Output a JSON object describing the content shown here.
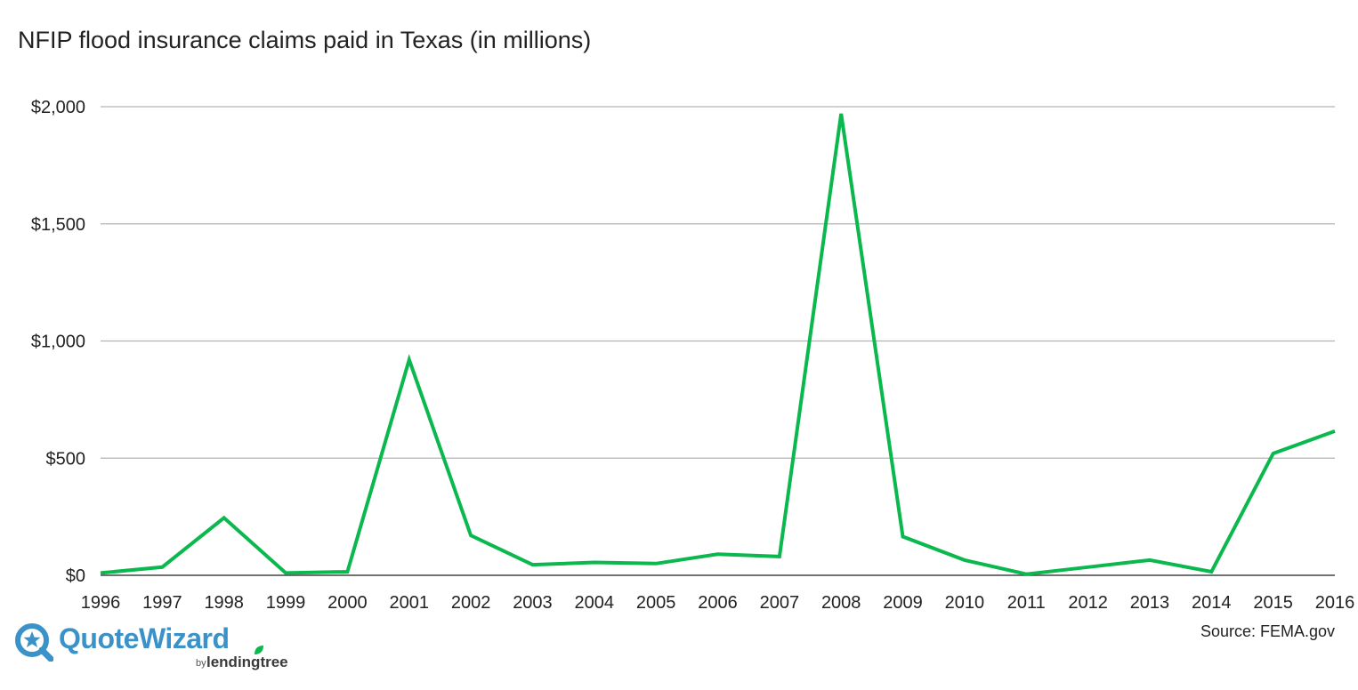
{
  "chart_data": {
    "type": "line",
    "title": "NFIP flood insurance claims paid in Texas (in millions)",
    "xlabel": "",
    "ylabel": "",
    "x": [
      "1996",
      "1997",
      "1998",
      "1999",
      "2000",
      "2001",
      "2002",
      "2003",
      "2004",
      "2005",
      "2006",
      "2007",
      "2008",
      "2009",
      "2010",
      "2011",
      "2012",
      "2013",
      "2014",
      "2015",
      "2016"
    ],
    "series": [
      {
        "values": [
          10,
          35,
          245,
          10,
          15,
          920,
          170,
          45,
          55,
          50,
          90,
          80,
          1970,
          165,
          65,
          5,
          35,
          65,
          15,
          520,
          615
        ]
      }
    ],
    "ylim": [
      0,
      2000
    ],
    "yticks": [
      0,
      500,
      1000,
      1500,
      2000
    ],
    "ytick_labels": [
      "$0",
      "$500",
      "$1,000",
      "$1,500",
      "$2,000"
    ],
    "grid": "horizontal",
    "line_color": "#0ab84e",
    "grid_color": "#b3b3b3"
  },
  "source": "Source: FEMA.gov",
  "brand": {
    "name": "QuoteWizard",
    "by": "by",
    "parent": "lendingtree",
    "name_color": "#3a92c8",
    "leaf_color": "#0ab84e"
  }
}
